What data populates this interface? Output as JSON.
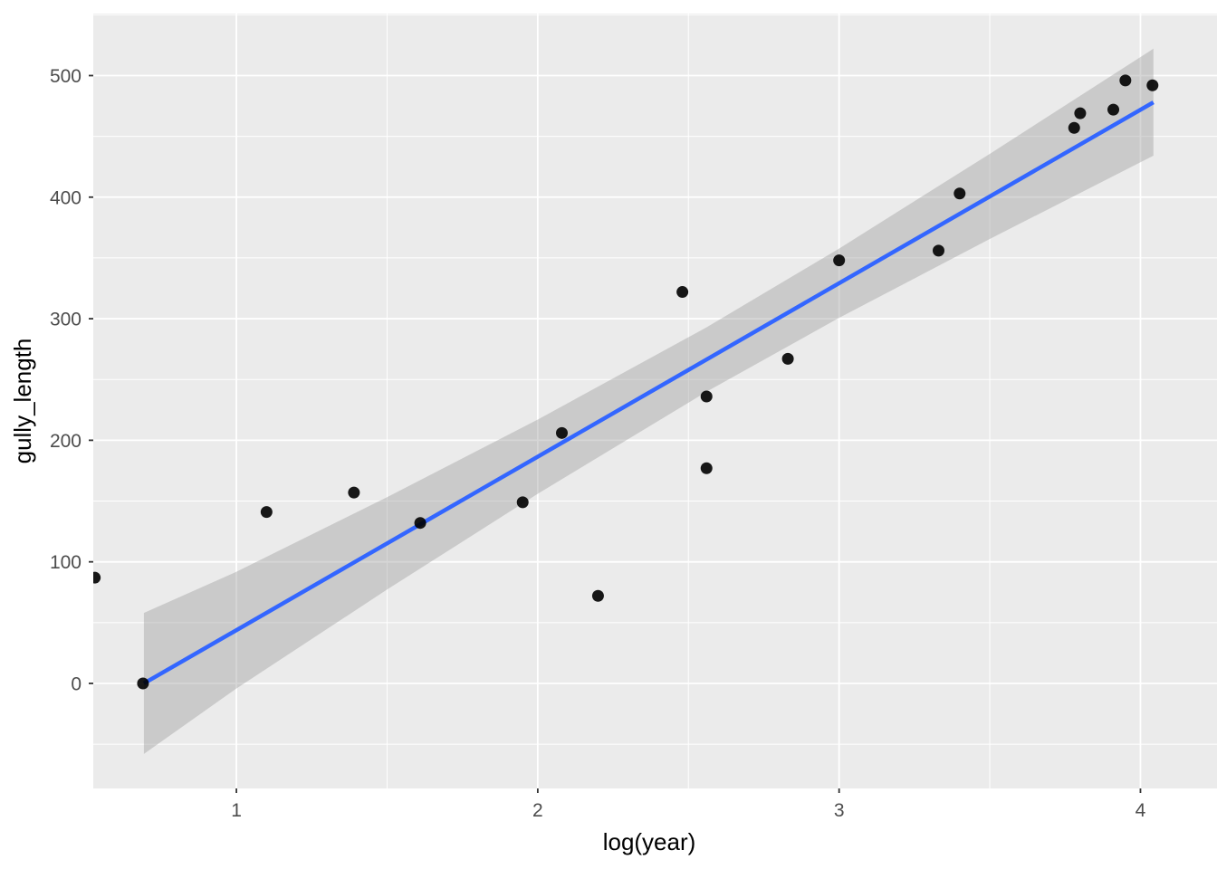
{
  "chart_data": {
    "type": "scatter",
    "title": "",
    "xlabel": "log(year)",
    "ylabel": "gully_length",
    "xlim": [
      0.525,
      4.254
    ],
    "ylim": [
      -86.4,
      551.0
    ],
    "x_ticks": [
      1,
      2,
      3,
      4
    ],
    "y_ticks": [
      0,
      100,
      200,
      300,
      400,
      500
    ],
    "x_minor_ticks": [
      1.5,
      2.5,
      3.5
    ],
    "y_minor_ticks": [
      -50,
      50,
      150,
      250,
      350,
      450,
      550
    ],
    "grid": true,
    "legend_position": "none",
    "points": [
      [
        0.53,
        87
      ],
      [
        0.69,
        0
      ],
      [
        1.1,
        141
      ],
      [
        1.39,
        157
      ],
      [
        1.61,
        132
      ],
      [
        1.95,
        149
      ],
      [
        2.08,
        206
      ],
      [
        2.2,
        72
      ],
      [
        2.48,
        322
      ],
      [
        2.56,
        236
      ],
      [
        2.56,
        177
      ],
      [
        2.83,
        267
      ],
      [
        3.0,
        348
      ],
      [
        3.33,
        356
      ],
      [
        3.4,
        403
      ],
      [
        3.78,
        457
      ],
      [
        3.8,
        469
      ],
      [
        3.91,
        472
      ],
      [
        3.95,
        496
      ],
      [
        4.04,
        492
      ]
    ],
    "smooth_line": {
      "label": "linear fit",
      "x": [
        0.693,
        4.043
      ],
      "y": [
        0,
        478
      ]
    },
    "ribbon": {
      "label": "95% confidence band",
      "x": [
        0.693,
        1.0,
        1.5,
        2.0,
        2.56,
        3.0,
        3.5,
        4.043
      ],
      "upper": [
        58,
        91.8,
        153.2,
        217,
        292.9,
        357.7,
        435.6,
        522.1
      ],
      "lower": [
        -58,
        -4.2,
        77.2,
        156,
        239.9,
        300.7,
        365.6,
        434.1
      ]
    },
    "colors": {
      "panel_background": "#ebebeb",
      "gridline": "#ffffff",
      "ribbon_fill": "rgba(153,153,153,0.4)",
      "line": "#3366FF",
      "point": "#000000",
      "tick_mark": "#333333",
      "tick_label": "#4d4d4d",
      "axis_title": "#000000"
    }
  }
}
